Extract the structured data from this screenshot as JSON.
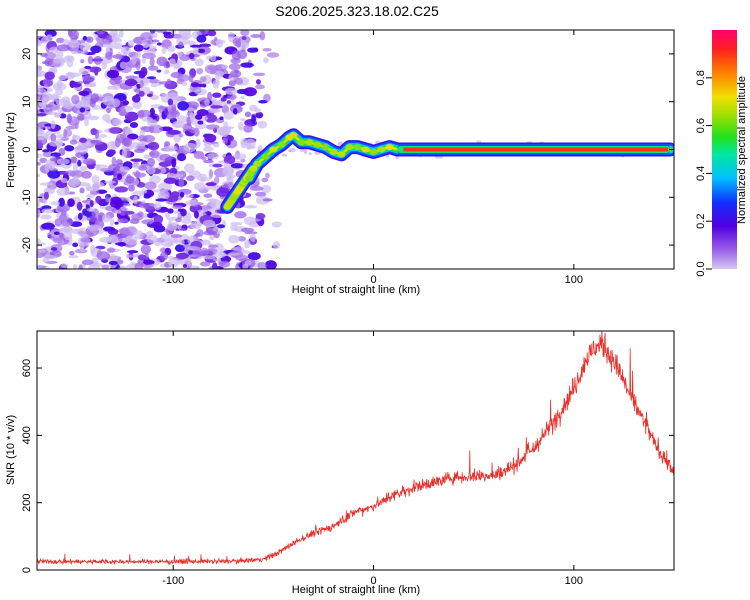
{
  "title": "S206.2025.323.18.02.C25",
  "chart_data": [
    {
      "type": "heatmap",
      "xlabel": "Height of straight line (km)",
      "ylabel": "Frequency (Hz)",
      "xlim": [
        -168,
        150
      ],
      "ylim": [
        -25,
        25
      ],
      "xticks": [
        -100,
        0,
        100
      ],
      "yticks": [
        -20,
        -10,
        0,
        10,
        20
      ],
      "colorbar": {
        "label": "Normalized spectral amplitude",
        "range": [
          0,
          1
        ],
        "ticks": [
          0.0,
          0.2,
          0.4,
          0.6,
          0.8
        ]
      },
      "ridge": {
        "description": "frequency trace of the signal",
        "x": [
          -62,
          -58,
          -54,
          -50,
          -46,
          -42,
          -40,
          -36,
          -32,
          -28,
          -24,
          -20,
          -16,
          -12,
          -8,
          -4,
          0,
          4,
          8,
          12,
          20,
          40,
          60,
          80,
          100,
          120,
          148
        ],
        "y": [
          -6,
          -3,
          -1.5,
          0,
          1,
          2.5,
          3,
          1.5,
          1.5,
          1,
          0.5,
          -0.5,
          -1,
          0.5,
          0.5,
          0,
          -0.5,
          0,
          0.5,
          0,
          0,
          0,
          0,
          0,
          0,
          0,
          0
        ],
        "sweep": {
          "x": [
            -73,
            -60
          ],
          "y": [
            -12,
            -4
          ]
        }
      }
    },
    {
      "type": "line",
      "xlabel": "Height of straight line (km)",
      "ylabel": "SNR (10 * v/v)",
      "xlim": [
        -168,
        150
      ],
      "ylim": [
        0,
        710
      ],
      "xticks": [
        -100,
        0,
        100
      ],
      "yticks": [
        0,
        200,
        400,
        600
      ],
      "series": [
        {
          "name": "SNR",
          "color": "#e8302a",
          "x": [
            -168,
            -140,
            -100,
            -70,
            -55,
            -48,
            -40,
            -30,
            -20,
            -10,
            0,
            10,
            20,
            30,
            40,
            50,
            60,
            70,
            80,
            90,
            100,
            105,
            110,
            115,
            120,
            130,
            140,
            150
          ],
          "y": [
            25,
            25,
            25,
            26,
            32,
            50,
            80,
            110,
            130,
            170,
            190,
            220,
            245,
            260,
            275,
            280,
            280,
            310,
            360,
            440,
            540,
            610,
            660,
            670,
            620,
            500,
            380,
            290
          ]
        }
      ]
    }
  ]
}
